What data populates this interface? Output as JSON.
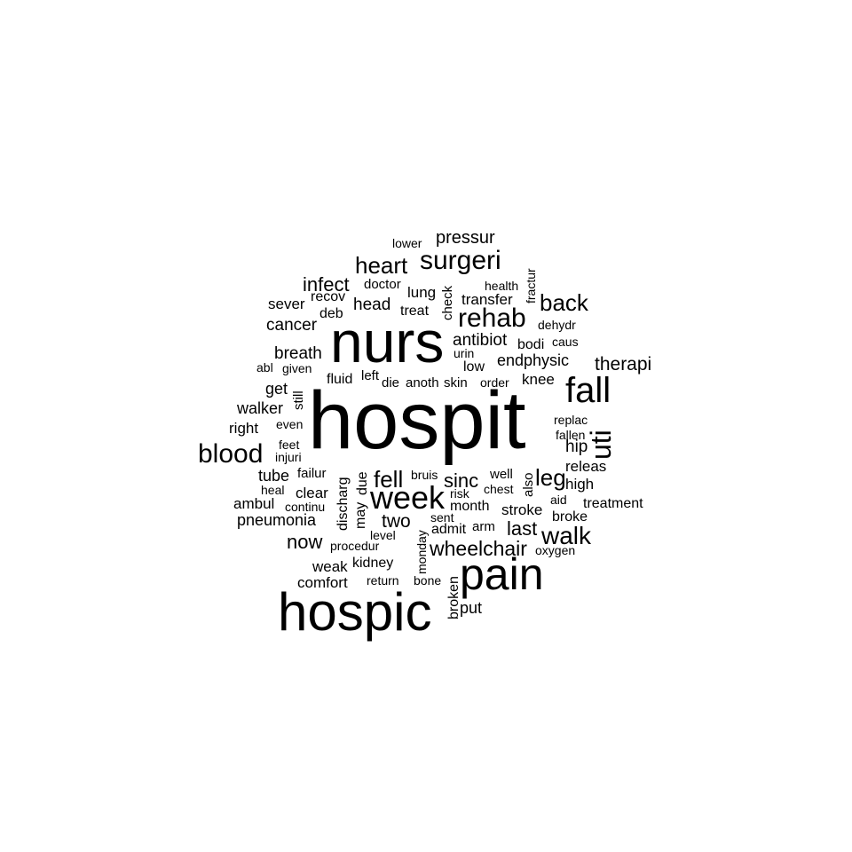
{
  "words": {
    "hospit": "hospit",
    "nurs": "nurs",
    "hospic": "hospic",
    "pain": "pain",
    "fall": "fall",
    "week": "week",
    "surgeri": "surgeri",
    "rehab": "rehab",
    "blood": "blood",
    "uti": "uti",
    "walk": "walk",
    "heart": "heart",
    "back": "back",
    "wheelchair": "wheelchair",
    "fell": "fell",
    "leg": "leg",
    "infect": "infect",
    "now": "now",
    "last": "last",
    "therapi": "therapi",
    "pressur": "pressur",
    "sinc": "sinc",
    "two": "two",
    "cancer": "cancer",
    "breath": "breath",
    "head": "head",
    "antibiot": "antibiot",
    "walker": "walker",
    "pneumonia": "pneumonia",
    "get": "get",
    "tube": "tube",
    "endphysic": "endphysic",
    "right": "right",
    "ambul": "ambul",
    "hip": "hip",
    "stroke": "stroke",
    "comfort": "comfort",
    "weak": "weak",
    "month": "month",
    "releas": "releas",
    "knee": "knee",
    "sever": "sever",
    "lung": "lung",
    "treatment": "treatment",
    "transfer": "transfer",
    "high": "high",
    "kidney": "kidney",
    "clear": "clear",
    "admit": "admit",
    "deb": "deb",
    "treat": "treat",
    "doctor": "doctor",
    "recov": "recov",
    "bodi": "bodi",
    "failur": "failur",
    "broke": "broke",
    "fluid": "fluid",
    "low": "low",
    "heal": "heal",
    "oxygen": "oxygen",
    "lower": "lower",
    "health": "health",
    "dehydr": "dehydr",
    "caus": "caus",
    "abl": "abl",
    "given": "given",
    "left": "left",
    "die": "die",
    "anoth": "anoth",
    "skin": "skin",
    "order": "order",
    "urin": "urin",
    "replac": "replac",
    "fallen": "fallen",
    "even": "even",
    "feet": "feet",
    "injuri": "injuri",
    "bruis": "bruis",
    "well": "well",
    "chest": "chest",
    "risk": "risk",
    "continu": "continu",
    "sent": "sent",
    "aid": "aid",
    "arm": "arm",
    "level": "level",
    "procedur": "procedur",
    "return": "return",
    "bone": "bone",
    "put": "put",
    "check": "check",
    "fractur": "fractur",
    "still": "still",
    "discharg": "discharg",
    "due": "due",
    "may": "may",
    "also": "also",
    "monday": "monday",
    "broken": "broken"
  }
}
